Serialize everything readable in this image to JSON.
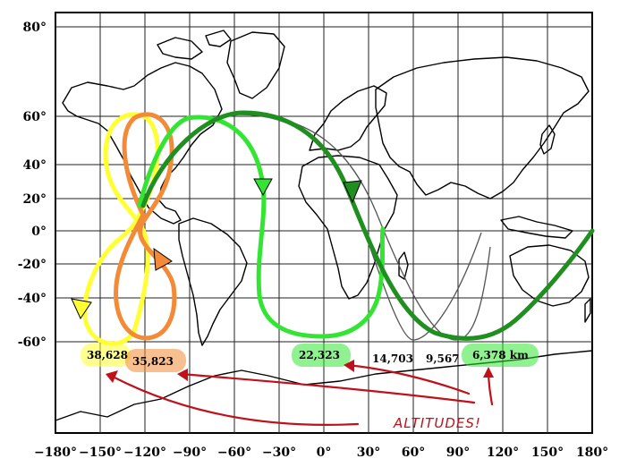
{
  "map": {
    "lat_labels": [
      "80°",
      "60°",
      "40°",
      "20°",
      "0°",
      "-20°",
      "-40°",
      "-60°"
    ],
    "lon_labels": [
      "−180°",
      "−150°",
      "−120°",
      "−90°",
      "−60°",
      "−30°",
      "0°",
      "30°",
      "60°",
      "90°",
      "120°",
      "150°",
      "180°"
    ]
  },
  "orbits": [
    {
      "altitude": "38,628",
      "color": "#ffff33"
    },
    {
      "altitude": "35,823",
      "color": "#f28a37"
    },
    {
      "altitude": "22,323",
      "color": "#33e533"
    },
    {
      "altitude": "14,703",
      "color": "#555555"
    },
    {
      "altitude": "9,567",
      "color": "#555555"
    },
    {
      "altitude": "6,378 km",
      "color": "#1f8f1f"
    }
  ],
  "annotation": {
    "text": "ALTITUDES!",
    "color": "#c0101a"
  }
}
